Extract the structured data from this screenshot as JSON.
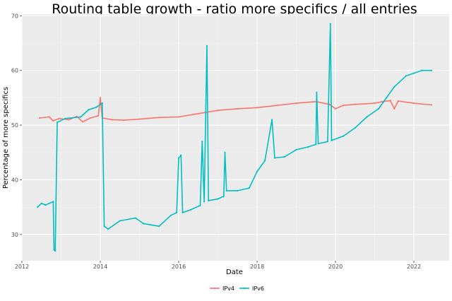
{
  "chart_data": {
    "type": "line",
    "title": "Routing table growth - ratio more specifics / all entries",
    "xlabel": "Date",
    "ylabel": "Percentage of more specifics",
    "xlim": [
      2012.0,
      2022.9
    ],
    "ylim": [
      25.2,
      70.3
    ],
    "x_ticks": [
      2012,
      2014,
      2016,
      2018,
      2020,
      2022
    ],
    "y_ticks": [
      30,
      40,
      50,
      60,
      70
    ],
    "grid": true,
    "legend_position": "bottom",
    "series": [
      {
        "name": "IPv4",
        "color": "#f8766d",
        "points": [
          [
            2012.45,
            51.3
          ],
          [
            2012.7,
            51.5
          ],
          [
            2012.8,
            50.8
          ],
          [
            2012.95,
            51.2
          ],
          [
            2013.2,
            51.0
          ],
          [
            2013.4,
            51.6
          ],
          [
            2013.55,
            50.6
          ],
          [
            2013.75,
            51.3
          ],
          [
            2013.95,
            51.7
          ],
          [
            2014.0,
            55.0
          ],
          [
            2014.05,
            51.3
          ],
          [
            2014.3,
            51.0
          ],
          [
            2014.6,
            50.9
          ],
          [
            2015.0,
            51.1
          ],
          [
            2015.5,
            51.4
          ],
          [
            2016.0,
            51.5
          ],
          [
            2016.5,
            52.1
          ],
          [
            2017.0,
            52.7
          ],
          [
            2017.5,
            53.0
          ],
          [
            2018.0,
            53.2
          ],
          [
            2018.5,
            53.6
          ],
          [
            2019.0,
            54.0
          ],
          [
            2019.5,
            54.3
          ],
          [
            2019.85,
            53.8
          ],
          [
            2020.0,
            53.0
          ],
          [
            2020.2,
            53.6
          ],
          [
            2020.5,
            53.8
          ],
          [
            2021.0,
            54.0
          ],
          [
            2021.2,
            54.3
          ],
          [
            2021.4,
            54.5
          ],
          [
            2021.5,
            53.0
          ],
          [
            2021.6,
            54.4
          ],
          [
            2022.0,
            54.0
          ],
          [
            2022.45,
            53.7
          ]
        ]
      },
      {
        "name": "IPv6",
        "color": "#00bfc4",
        "points": [
          [
            2012.4,
            35.0
          ],
          [
            2012.5,
            35.7
          ],
          [
            2012.6,
            35.4
          ],
          [
            2012.8,
            36.0
          ],
          [
            2012.82,
            27.2
          ],
          [
            2012.85,
            27.0
          ],
          [
            2012.9,
            50.5
          ],
          [
            2013.1,
            51.2
          ],
          [
            2013.5,
            51.5
          ],
          [
            2013.7,
            52.8
          ],
          [
            2013.9,
            53.3
          ],
          [
            2014.05,
            54.0
          ],
          [
            2014.1,
            31.5
          ],
          [
            2014.2,
            31.0
          ],
          [
            2014.5,
            32.5
          ],
          [
            2014.9,
            33.0
          ],
          [
            2015.1,
            32.0
          ],
          [
            2015.5,
            31.5
          ],
          [
            2015.8,
            33.5
          ],
          [
            2015.95,
            34.0
          ],
          [
            2016.0,
            44.0
          ],
          [
            2016.06,
            44.5
          ],
          [
            2016.1,
            34.0
          ],
          [
            2016.3,
            34.5
          ],
          [
            2016.55,
            35.3
          ],
          [
            2016.6,
            47.0
          ],
          [
            2016.65,
            36.0
          ],
          [
            2016.72,
            64.5
          ],
          [
            2016.76,
            36.2
          ],
          [
            2017.0,
            36.5
          ],
          [
            2017.15,
            37.0
          ],
          [
            2017.18,
            45.0
          ],
          [
            2017.22,
            38.0
          ],
          [
            2017.5,
            38.0
          ],
          [
            2017.8,
            38.5
          ],
          [
            2018.0,
            41.5
          ],
          [
            2018.2,
            43.5
          ],
          [
            2018.38,
            51.0
          ],
          [
            2018.45,
            44.0
          ],
          [
            2018.7,
            44.2
          ],
          [
            2019.0,
            45.5
          ],
          [
            2019.3,
            46.0
          ],
          [
            2019.5,
            46.5
          ],
          [
            2019.52,
            56.0
          ],
          [
            2019.56,
            46.6
          ],
          [
            2019.8,
            47.0
          ],
          [
            2019.87,
            68.5
          ],
          [
            2019.9,
            47.2
          ],
          [
            2020.2,
            48.0
          ],
          [
            2020.5,
            49.5
          ],
          [
            2020.8,
            51.5
          ],
          [
            2021.1,
            53.0
          ],
          [
            2021.3,
            55.0
          ],
          [
            2021.5,
            57.0
          ],
          [
            2021.8,
            59.0
          ],
          [
            2022.0,
            59.5
          ],
          [
            2022.2,
            60.0
          ],
          [
            2022.45,
            60.0
          ]
        ]
      }
    ]
  }
}
